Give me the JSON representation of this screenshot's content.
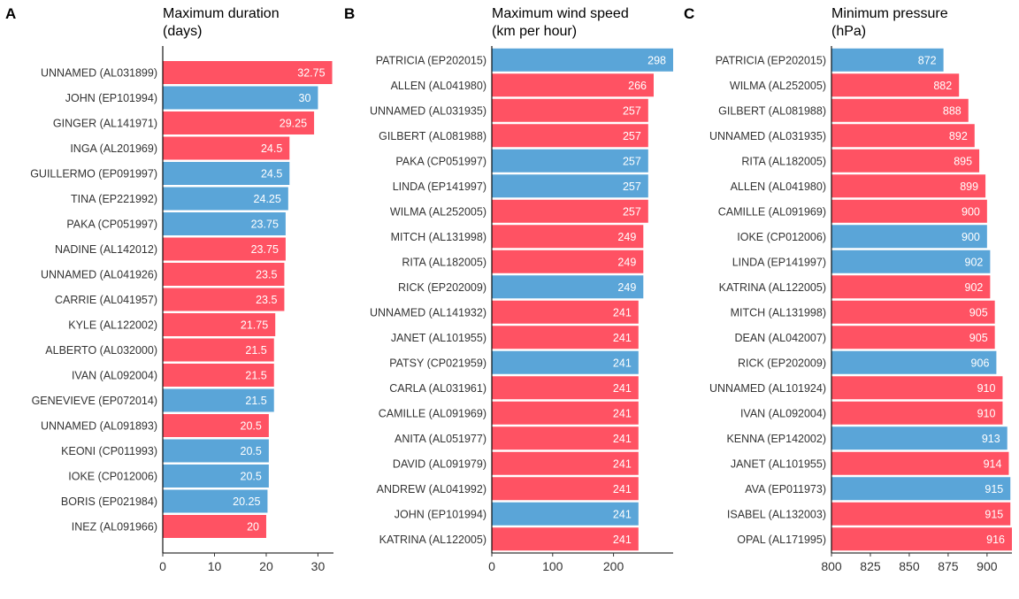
{
  "colors": {
    "atlantic": "#FF5263",
    "pacific": "#5AA5D8"
  },
  "chart_data": [
    {
      "type": "bar",
      "orientation": "horizontal",
      "letter": "A",
      "title": [
        "Maximum duration",
        "(days)"
      ],
      "xlim": [
        0,
        33
      ],
      "xticks": [
        0,
        10,
        20,
        30
      ],
      "xlabel": "",
      "ylabel": "",
      "grid": false,
      "bars": [
        {
          "label": "UNNAMED (AL031899)",
          "value": 32.75,
          "display": "32.75",
          "basin": "atlantic"
        },
        {
          "label": "JOHN (EP101994)",
          "value": 30,
          "display": "30",
          "basin": "pacific"
        },
        {
          "label": "GINGER (AL141971)",
          "value": 29.25,
          "display": "29.25",
          "basin": "atlantic"
        },
        {
          "label": "INGA (AL201969)",
          "value": 24.5,
          "display": "24.5",
          "basin": "atlantic"
        },
        {
          "label": "GUILLERMO (EP091997)",
          "value": 24.5,
          "display": "24.5",
          "basin": "pacific"
        },
        {
          "label": "TINA (EP221992)",
          "value": 24.25,
          "display": "24.25",
          "basin": "pacific"
        },
        {
          "label": "PAKA (CP051997)",
          "value": 23.75,
          "display": "23.75",
          "basin": "pacific"
        },
        {
          "label": "NADINE (AL142012)",
          "value": 23.75,
          "display": "23.75",
          "basin": "atlantic"
        },
        {
          "label": "UNNAMED (AL041926)",
          "value": 23.5,
          "display": "23.5",
          "basin": "atlantic"
        },
        {
          "label": "CARRIE (AL041957)",
          "value": 23.5,
          "display": "23.5",
          "basin": "atlantic"
        },
        {
          "label": "KYLE (AL122002)",
          "value": 21.75,
          "display": "21.75",
          "basin": "atlantic"
        },
        {
          "label": "ALBERTO (AL032000)",
          "value": 21.5,
          "display": "21.5",
          "basin": "atlantic"
        },
        {
          "label": "IVAN (AL092004)",
          "value": 21.5,
          "display": "21.5",
          "basin": "atlantic"
        },
        {
          "label": "GENEVIEVE (EP072014)",
          "value": 21.5,
          "display": "21.5",
          "basin": "pacific"
        },
        {
          "label": "UNNAMED (AL091893)",
          "value": 20.5,
          "display": "20.5",
          "basin": "atlantic"
        },
        {
          "label": "KEONI (CP011993)",
          "value": 20.5,
          "display": "20.5",
          "basin": "pacific"
        },
        {
          "label": "IOKE (CP012006)",
          "value": 20.5,
          "display": "20.5",
          "basin": "pacific"
        },
        {
          "label": "BORIS (EP021984)",
          "value": 20.25,
          "display": "20.25",
          "basin": "pacific"
        },
        {
          "label": "INEZ (AL091966)",
          "value": 20,
          "display": "20",
          "basin": "atlantic"
        }
      ]
    },
    {
      "type": "bar",
      "orientation": "horizontal",
      "letter": "B",
      "title": [
        "Maximum wind speed",
        "(km per hour)"
      ],
      "xlim": [
        0,
        298
      ],
      "xticks": [
        0,
        100,
        200
      ],
      "xlabel": "",
      "ylabel": "",
      "grid": false,
      "bars": [
        {
          "label": "PATRICIA (EP202015)",
          "value": 298,
          "display": "298",
          "basin": "pacific"
        },
        {
          "label": "ALLEN (AL041980)",
          "value": 266,
          "display": "266",
          "basin": "atlantic"
        },
        {
          "label": "UNNAMED (AL031935)",
          "value": 257,
          "display": "257",
          "basin": "atlantic"
        },
        {
          "label": "GILBERT (AL081988)",
          "value": 257,
          "display": "257",
          "basin": "atlantic"
        },
        {
          "label": "PAKA (CP051997)",
          "value": 257,
          "display": "257",
          "basin": "pacific"
        },
        {
          "label": "LINDA (EP141997)",
          "value": 257,
          "display": "257",
          "basin": "pacific"
        },
        {
          "label": "WILMA (AL252005)",
          "value": 257,
          "display": "257",
          "basin": "atlantic"
        },
        {
          "label": "MITCH (AL131998)",
          "value": 249,
          "display": "249",
          "basin": "atlantic"
        },
        {
          "label": "RITA (AL182005)",
          "value": 249,
          "display": "249",
          "basin": "atlantic"
        },
        {
          "label": "RICK (EP202009)",
          "value": 249,
          "display": "249",
          "basin": "pacific"
        },
        {
          "label": "UNNAMED (AL141932)",
          "value": 241,
          "display": "241",
          "basin": "atlantic"
        },
        {
          "label": "JANET (AL101955)",
          "value": 241,
          "display": "241",
          "basin": "atlantic"
        },
        {
          "label": "PATSY (CP021959)",
          "value": 241,
          "display": "241",
          "basin": "pacific"
        },
        {
          "label": "CARLA (AL031961)",
          "value": 241,
          "display": "241",
          "basin": "atlantic"
        },
        {
          "label": "CAMILLE (AL091969)",
          "value": 241,
          "display": "241",
          "basin": "atlantic"
        },
        {
          "label": "ANITA (AL051977)",
          "value": 241,
          "display": "241",
          "basin": "atlantic"
        },
        {
          "label": "DAVID (AL091979)",
          "value": 241,
          "display": "241",
          "basin": "atlantic"
        },
        {
          "label": "ANDREW (AL041992)",
          "value": 241,
          "display": "241",
          "basin": "atlantic"
        },
        {
          "label": "JOHN (EP101994)",
          "value": 241,
          "display": "241",
          "basin": "pacific"
        },
        {
          "label": "KATRINA (AL122005)",
          "value": 241,
          "display": "241",
          "basin": "atlantic"
        }
      ]
    },
    {
      "type": "bar",
      "orientation": "horizontal",
      "letter": "C",
      "title": [
        "Minimum pressure",
        "(hPa)"
      ],
      "xlim": [
        800,
        916
      ],
      "xticks": [
        800,
        825,
        850,
        875,
        900
      ],
      "xlabel": "",
      "ylabel": "",
      "grid": false,
      "bars": [
        {
          "label": "PATRICIA (EP202015)",
          "value": 872,
          "display": "872",
          "basin": "pacific"
        },
        {
          "label": "WILMA (AL252005)",
          "value": 882,
          "display": "882",
          "basin": "atlantic"
        },
        {
          "label": "GILBERT (AL081988)",
          "value": 888,
          "display": "888",
          "basin": "atlantic"
        },
        {
          "label": "UNNAMED (AL031935)",
          "value": 892,
          "display": "892",
          "basin": "atlantic"
        },
        {
          "label": "RITA (AL182005)",
          "value": 895,
          "display": "895",
          "basin": "atlantic"
        },
        {
          "label": "ALLEN (AL041980)",
          "value": 899,
          "display": "899",
          "basin": "atlantic"
        },
        {
          "label": "CAMILLE (AL091969)",
          "value": 900,
          "display": "900",
          "basin": "atlantic"
        },
        {
          "label": "IOKE (CP012006)",
          "value": 900,
          "display": "900",
          "basin": "pacific"
        },
        {
          "label": "LINDA (EP141997)",
          "value": 902,
          "display": "902",
          "basin": "pacific"
        },
        {
          "label": "KATRINA (AL122005)",
          "value": 902,
          "display": "902",
          "basin": "atlantic"
        },
        {
          "label": "MITCH (AL131998)",
          "value": 905,
          "display": "905",
          "basin": "atlantic"
        },
        {
          "label": "DEAN (AL042007)",
          "value": 905,
          "display": "905",
          "basin": "atlantic"
        },
        {
          "label": "RICK (EP202009)",
          "value": 906,
          "display": "906",
          "basin": "pacific"
        },
        {
          "label": "UNNAMED (AL101924)",
          "value": 910,
          "display": "910",
          "basin": "atlantic"
        },
        {
          "label": "IVAN (AL092004)",
          "value": 910,
          "display": "910",
          "basin": "atlantic"
        },
        {
          "label": "KENNA (EP142002)",
          "value": 913,
          "display": "913",
          "basin": "pacific"
        },
        {
          "label": "JANET (AL101955)",
          "value": 914,
          "display": "914",
          "basin": "atlantic"
        },
        {
          "label": "AVA (EP011973)",
          "value": 915,
          "display": "915",
          "basin": "pacific"
        },
        {
          "label": "ISABEL (AL132003)",
          "value": 915,
          "display": "915",
          "basin": "atlantic"
        },
        {
          "label": "OPAL (AL171995)",
          "value": 916,
          "display": "916",
          "basin": "atlantic"
        }
      ]
    }
  ]
}
